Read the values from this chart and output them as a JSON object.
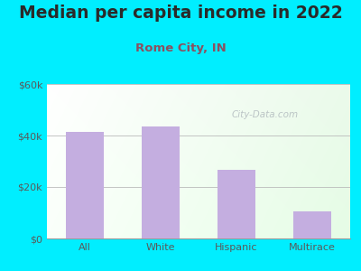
{
  "title": "Median per capita income in 2022",
  "subtitle": "Rome City, IN",
  "categories": [
    "All",
    "White",
    "Hispanic",
    "Multirace"
  ],
  "values": [
    41500,
    43500,
    26500,
    10500
  ],
  "bar_color": "#c4aee0",
  "title_color": "#2a2a2a",
  "subtitle_color": "#8b5060",
  "tick_label_color": "#5a5a5a",
  "background_outer": "#00eeff",
  "ylim": [
    0,
    60000
  ],
  "yticks": [
    0,
    20000,
    40000,
    60000
  ],
  "ytick_labels": [
    "$0",
    "$20k",
    "$40k",
    "$60k"
  ],
  "watermark": "City-Data.com",
  "title_fontsize": 13.5,
  "subtitle_fontsize": 9.5,
  "tick_fontsize": 8.0
}
